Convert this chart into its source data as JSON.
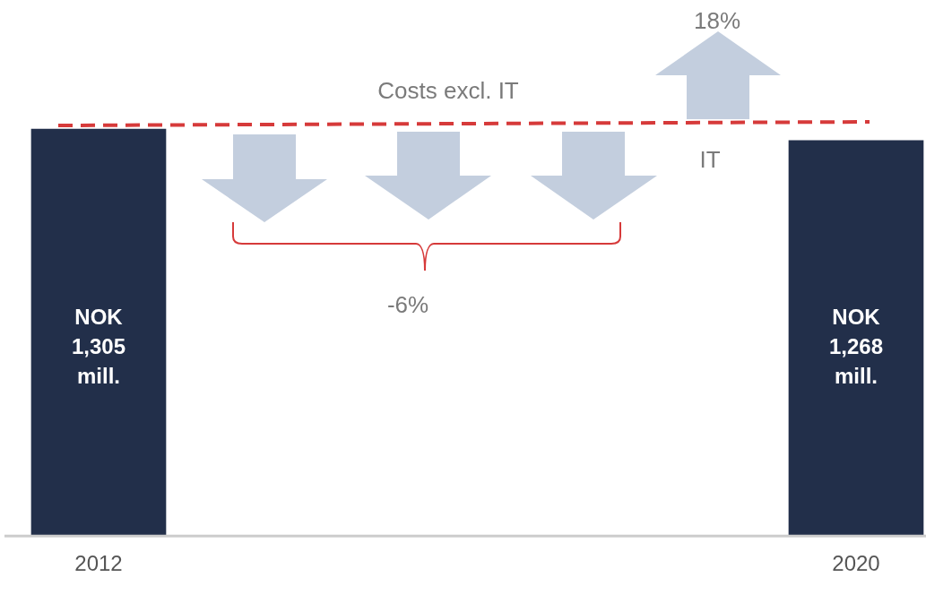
{
  "chart_data": {
    "type": "bar",
    "categories": [
      "2012",
      "2020"
    ],
    "values": [
      1305,
      1268
    ],
    "value_labels": [
      "NOK 1,305 mill.",
      "NOK 1,268 mill."
    ],
    "color": "#222f4a",
    "annotations": [
      "Costs excl. IT",
      "IT",
      "18%",
      "-6%"
    ],
    "legend": false,
    "grid": false,
    "tick_labels": "x"
  }
}
